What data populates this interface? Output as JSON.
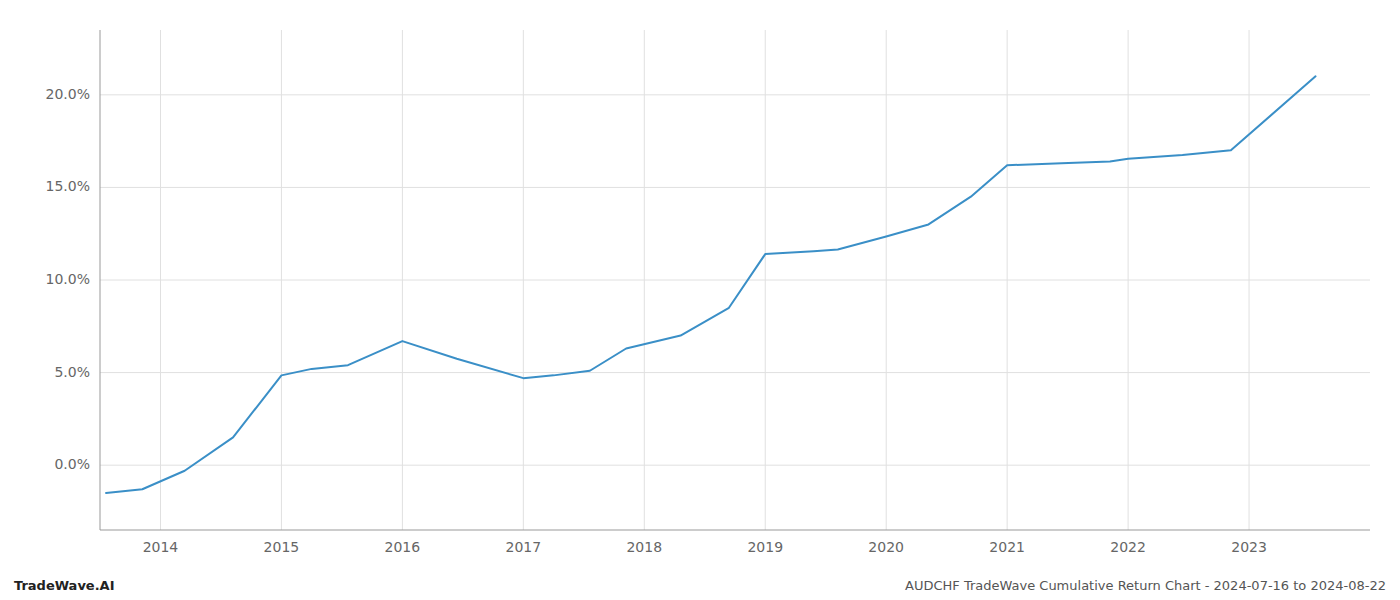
{
  "chart_data": {
    "type": "line",
    "title": "AUDCHF TradeWave Cumulative Return Chart - 2024-07-16 to 2024-08-22",
    "annotations": [
      "TradeWave.AI"
    ],
    "x": [
      2013.55,
      2013.85,
      2014.2,
      2014.6,
      2015.0,
      2015.25,
      2015.55,
      2016.0,
      2016.45,
      2017.0,
      2017.25,
      2017.55,
      2017.85,
      2018.3,
      2018.7,
      2019.0,
      2019.4,
      2019.6,
      2020.0,
      2020.35,
      2020.7,
      2021.0,
      2021.45,
      2021.85,
      2022.0,
      2022.45,
      2022.85,
      2023.55
    ],
    "values": [
      -1.5,
      -1.3,
      -0.3,
      1.5,
      4.85,
      5.2,
      5.4,
      6.7,
      5.75,
      4.7,
      4.85,
      5.1,
      6.3,
      7.0,
      8.5,
      11.4,
      11.55,
      11.65,
      12.35,
      13.0,
      14.5,
      16.2,
      16.3,
      16.4,
      16.55,
      16.75,
      17.0,
      21.0
    ],
    "color": "#3a8fc7",
    "xlim": [
      2013.5,
      2024.0
    ],
    "ylim": [
      -3.5,
      23.5
    ],
    "xticks": [
      2014,
      2015,
      2016,
      2017,
      2018,
      2019,
      2020,
      2021,
      2022,
      2023
    ],
    "yticks": [
      {
        "value": 0.0,
        "label": "0.0%"
      },
      {
        "value": 5.0,
        "label": "5.0%"
      },
      {
        "value": 10.0,
        "label": "10.0%"
      },
      {
        "value": 15.0,
        "label": "15.0%"
      },
      {
        "value": 20.0,
        "label": "20.0%"
      }
    ],
    "grid": true
  }
}
